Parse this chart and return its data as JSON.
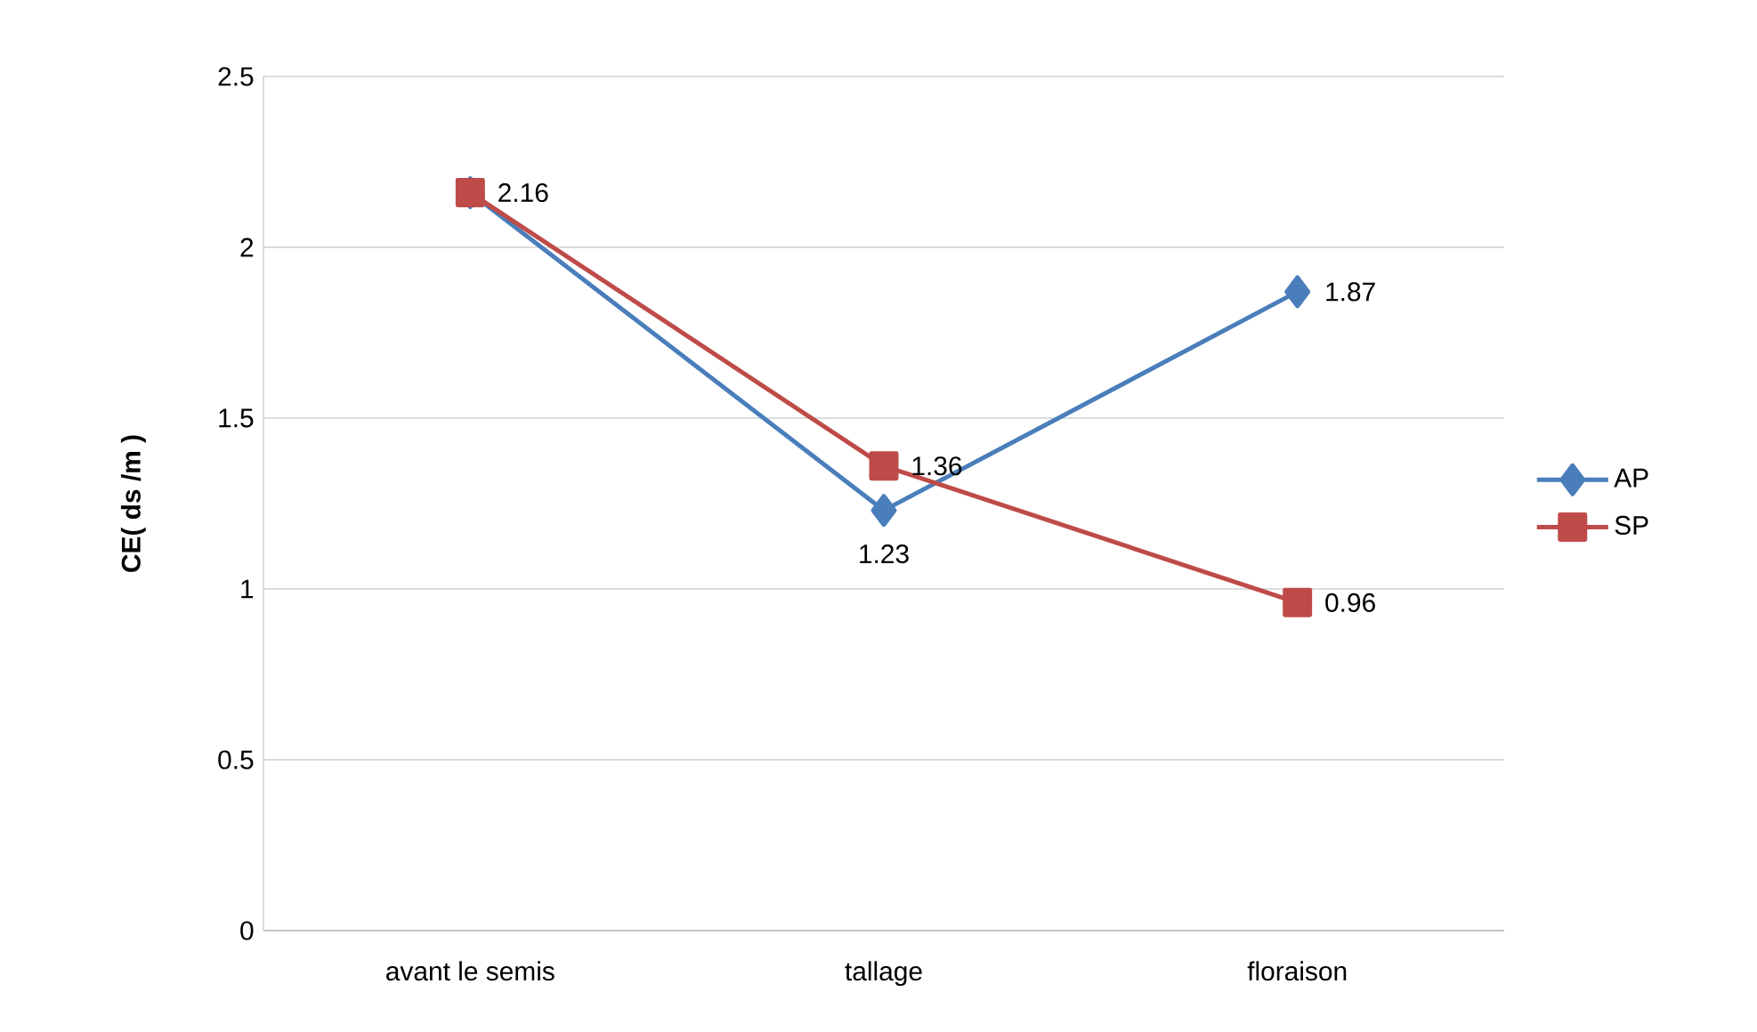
{
  "chart_data": {
    "type": "line",
    "ylabel": "CE( ds /m )",
    "categories": [
      "avant le semis",
      "tallage",
      "floraison"
    ],
    "series": [
      {
        "name": "AP",
        "color": "#4a7ebb",
        "marker": "diamond",
        "values": [
          2.16,
          1.23,
          1.87
        ],
        "value_labels": [
          null,
          "1.23",
          "1.87"
        ]
      },
      {
        "name": "SP",
        "color": "#be4b48",
        "marker": "square",
        "values": [
          2.16,
          1.36,
          0.96
        ],
        "value_labels": [
          "2.16",
          "1.36",
          "0.96"
        ]
      }
    ],
    "ylim": [
      0,
      2.5
    ],
    "yticks": [
      0,
      0.5,
      1,
      1.5,
      2,
      2.5
    ],
    "grid": "y",
    "legend": "right"
  }
}
